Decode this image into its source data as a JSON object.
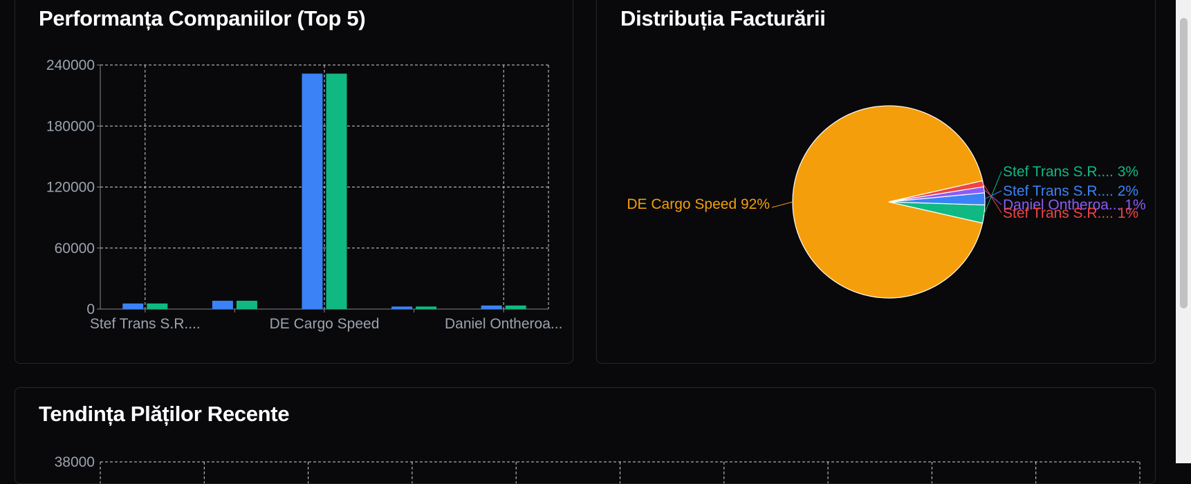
{
  "colors": {
    "background": "#09090b",
    "card_border": "#27272a",
    "grid": "#d4d4d8",
    "axis_text": "#9ca3af",
    "series_blue": "#3b82f6",
    "series_green": "#10b981",
    "pie_orange": "#f59e0b",
    "pie_green": "#10b981",
    "pie_blue": "#3b82f6",
    "pie_purple": "#8b5cf6",
    "pie_red": "#ef4444"
  },
  "cards": {
    "bar_title": "Performanța Companiilor (Top 5)",
    "pie_title": "Distribuția Facturării",
    "line_title": "Tendința Plăților Recente"
  },
  "chart_data": [
    {
      "type": "bar",
      "title": "Performanța Companiilor (Top 5)",
      "categories": [
        "Stef Trans S.R....",
        "",
        "DE Cargo Speed",
        "",
        "Daniel Ontheroa..."
      ],
      "series": [
        {
          "color": "#3b82f6",
          "values": [
            5500,
            8200,
            231500,
            2500,
            3500
          ]
        },
        {
          "color": "#10b981",
          "values": [
            5500,
            8200,
            231500,
            2500,
            3500
          ]
        }
      ],
      "ylim": [
        0,
        240000
      ],
      "yticks": [
        "0",
        "60000",
        "120000",
        "180000",
        "240000"
      ],
      "grid": true
    },
    {
      "type": "pie",
      "title": "Distribuția Facturării",
      "slices": [
        {
          "label": "DE Cargo Speed 92%",
          "value": 92,
          "color": "#f59e0b"
        },
        {
          "label": "Stef Trans S.R.... 3%",
          "value": 3,
          "color": "#10b981"
        },
        {
          "label": "Stef Trans S.R.... 2%",
          "value": 2,
          "color": "#3b82f6"
        },
        {
          "label": "Daniel Ontheroa... 1%",
          "value": 1,
          "color": "#8b5cf6"
        },
        {
          "label": "Stef Trans S.R.... 1%",
          "value": 1,
          "color": "#ef4444"
        }
      ]
    }
  ],
  "line_chart_partial": {
    "top_tick": "38000"
  }
}
